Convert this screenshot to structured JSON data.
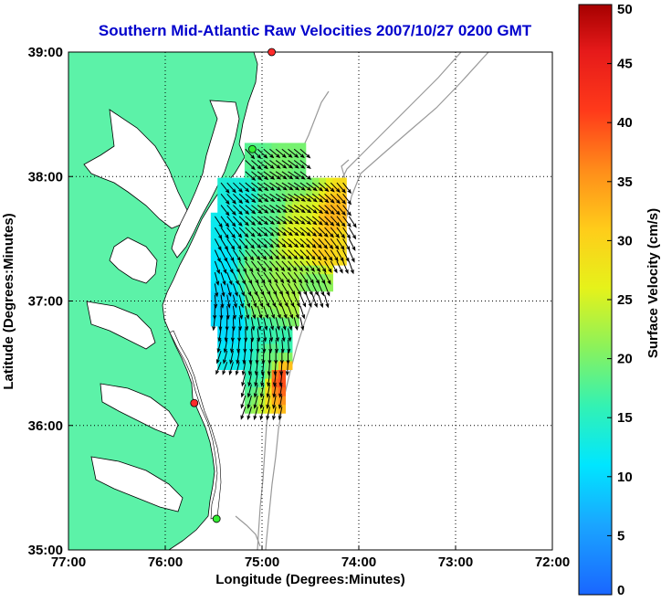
{
  "title": "Southern Mid-Atlantic Raw Velocities 2007/10/27 0200 GMT",
  "x_axis": {
    "label": "Longitude (Degrees:Minutes)",
    "ticks": [
      {
        "value": -77,
        "label": "77:00"
      },
      {
        "value": -76,
        "label": "76:00"
      },
      {
        "value": -75,
        "label": "75:00"
      },
      {
        "value": -74,
        "label": "74:00"
      },
      {
        "value": -73,
        "label": "73:00"
      },
      {
        "value": -72,
        "label": "72:00"
      }
    ],
    "range": [
      -77,
      -72
    ]
  },
  "y_axis": {
    "label": "Latitude (Degrees:Minutes)",
    "ticks": [
      {
        "value": 35,
        "label": "35:00"
      },
      {
        "value": 36,
        "label": "36:00"
      },
      {
        "value": 37,
        "label": "37:00"
      },
      {
        "value": 38,
        "label": "38:00"
      },
      {
        "value": 39,
        "label": "39:00"
      }
    ],
    "range": [
      35,
      39
    ]
  },
  "colorbar": {
    "label": "Surface Velocity (cm/s)",
    "range": [
      0,
      50
    ],
    "ticks": [
      {
        "value": 0,
        "label": "0"
      },
      {
        "value": 5,
        "label": "5"
      },
      {
        "value": 10,
        "label": "10"
      },
      {
        "value": 15,
        "label": "15"
      },
      {
        "value": 20,
        "label": "20"
      },
      {
        "value": 25,
        "label": "25"
      },
      {
        "value": 30,
        "label": "30"
      },
      {
        "value": 35,
        "label": "35"
      },
      {
        "value": 40,
        "label": "40"
      },
      {
        "value": 45,
        "label": "45"
      },
      {
        "value": 50,
        "label": "50"
      }
    ]
  },
  "colors": {
    "title": "#0000cc",
    "land": "#5cf2a8",
    "coast": "#000000",
    "bathymetry": "#999999",
    "grid": "#000000"
  },
  "stations": [
    {
      "lon": -74.9,
      "lat": 39.0,
      "color": "#ff2a2a"
    },
    {
      "lon": -75.1,
      "lat": 38.22,
      "color": "#33ee33"
    },
    {
      "lon": -75.7,
      "lat": 36.18,
      "color": "#ff2a2a"
    },
    {
      "lon": -75.47,
      "lat": 35.25,
      "color": "#33ee33"
    }
  ],
  "chart_data": {
    "type": "heatmap",
    "title": "Southern Mid-Atlantic Raw Velocities 2007/10/27 0200 GMT",
    "xlabel": "Longitude (Degrees:Minutes)",
    "ylabel": "Latitude (Degrees:Minutes)",
    "xlim": [
      -77,
      -72
    ],
    "ylim": [
      35,
      39
    ],
    "grid": true,
    "color_scale": {
      "label": "Surface Velocity (cm/s)",
      "min": 0,
      "max": 50
    },
    "velocity_samples": [
      {
        "lon": -75.1,
        "lat": 38.12,
        "speed": 18
      },
      {
        "lon": -74.85,
        "lat": 38.05,
        "speed": 20
      },
      {
        "lon": -74.65,
        "lat": 37.95,
        "speed": 19
      },
      {
        "lon": -75.25,
        "lat": 37.8,
        "speed": 13
      },
      {
        "lon": -74.95,
        "lat": 37.75,
        "speed": 18
      },
      {
        "lon": -74.6,
        "lat": 37.7,
        "speed": 25
      },
      {
        "lon": -74.3,
        "lat": 37.65,
        "speed": 33
      },
      {
        "lon": -75.4,
        "lat": 37.55,
        "speed": 12
      },
      {
        "lon": -75.05,
        "lat": 37.5,
        "speed": 17
      },
      {
        "lon": -74.7,
        "lat": 37.45,
        "speed": 26
      },
      {
        "lon": -74.4,
        "lat": 37.4,
        "speed": 31
      },
      {
        "lon": -74.2,
        "lat": 37.45,
        "speed": 29
      },
      {
        "lon": -75.45,
        "lat": 37.25,
        "speed": 11
      },
      {
        "lon": -75.1,
        "lat": 37.2,
        "speed": 20
      },
      {
        "lon": -74.8,
        "lat": 37.15,
        "speed": 22
      },
      {
        "lon": -74.5,
        "lat": 37.1,
        "speed": 20
      },
      {
        "lon": -75.4,
        "lat": 36.95,
        "speed": 9
      },
      {
        "lon": -75.05,
        "lat": 36.95,
        "speed": 21
      },
      {
        "lon": -74.75,
        "lat": 36.95,
        "speed": 23
      },
      {
        "lon": -75.35,
        "lat": 36.75,
        "speed": 10
      },
      {
        "lon": -75.05,
        "lat": 36.7,
        "speed": 15
      },
      {
        "lon": -74.8,
        "lat": 36.65,
        "speed": 16
      },
      {
        "lon": -75.25,
        "lat": 36.55,
        "speed": 12
      },
      {
        "lon": -74.95,
        "lat": 36.5,
        "speed": 19
      },
      {
        "lon": -74.85,
        "lat": 36.35,
        "speed": 40
      },
      {
        "lon": -75.05,
        "lat": 36.4,
        "speed": 16
      }
    ]
  }
}
